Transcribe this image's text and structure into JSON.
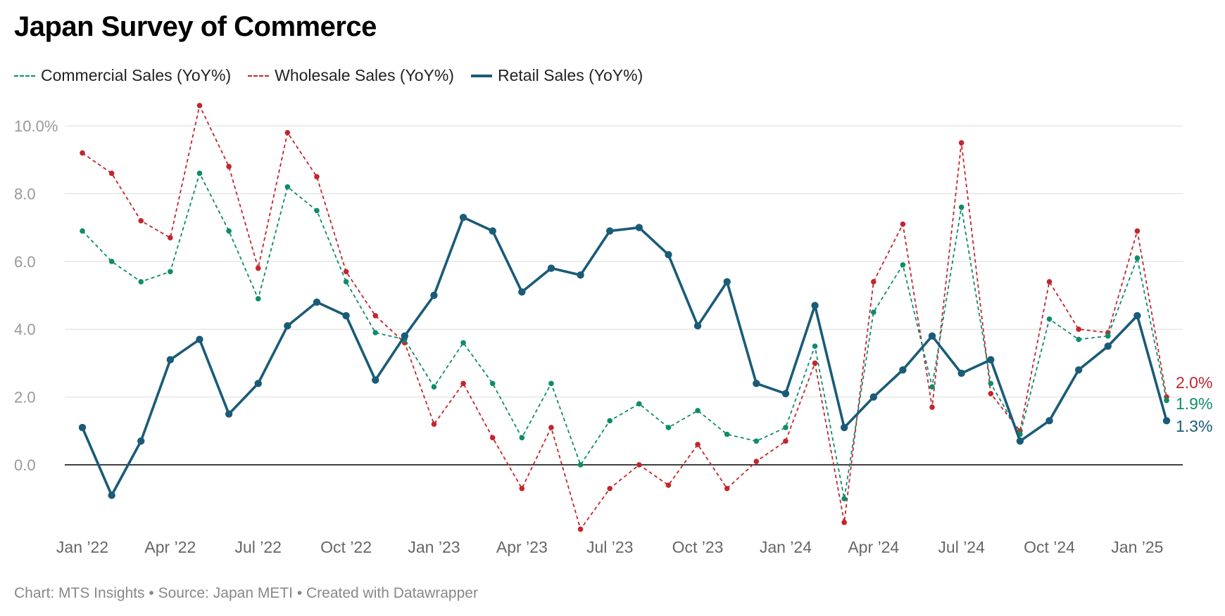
{
  "header": {
    "title": "Japan Survey of Commerce"
  },
  "legend": [
    {
      "label": "Commercial Sales (YoY%)",
      "style": "dashed",
      "color": "#0e8c6b"
    },
    {
      "label": "Wholesale Sales (YoY%)",
      "style": "dashed",
      "color": "#c1272d"
    },
    {
      "label": "Retail Sales (YoY%)",
      "style": "solid",
      "color": "#1a5b78"
    }
  ],
  "footer": {
    "text": "Chart: MTS Insights • Source: Japan METI • Created with Datawrapper"
  },
  "chart_data": {
    "type": "line",
    "title": "Japan Survey of Commerce",
    "xlabel": "",
    "ylabel": "",
    "ylim": [
      -2.2,
      10.0
    ],
    "grid": true,
    "legend_position": "top-left",
    "y_ticks": [
      {
        "value": 10,
        "label": "10.0%"
      },
      {
        "value": 8,
        "label": "8.0"
      },
      {
        "value": 6,
        "label": "6.0"
      },
      {
        "value": 4,
        "label": "4.0"
      },
      {
        "value": 2,
        "label": "2.0"
      },
      {
        "value": 0,
        "label": "0.0"
      }
    ],
    "x_ticks": [
      {
        "index": 0,
        "label": "Jan ’22"
      },
      {
        "index": 3,
        "label": "Apr ’22"
      },
      {
        "index": 6,
        "label": "Jul ’22"
      },
      {
        "index": 9,
        "label": "Oct ’22"
      },
      {
        "index": 12,
        "label": "Jan ’23"
      },
      {
        "index": 15,
        "label": "Apr ’23"
      },
      {
        "index": 18,
        "label": "Jul ’23"
      },
      {
        "index": 21,
        "label": "Oct ’23"
      },
      {
        "index": 24,
        "label": "Jan ’24"
      },
      {
        "index": 27,
        "label": "Apr ’24"
      },
      {
        "index": 30,
        "label": "Jul ’24"
      },
      {
        "index": 33,
        "label": "Oct ’24"
      },
      {
        "index": 36,
        "label": "Jan ’25"
      }
    ],
    "x": [
      "2022-01",
      "2022-02",
      "2022-03",
      "2022-04",
      "2022-05",
      "2022-06",
      "2022-07",
      "2022-08",
      "2022-09",
      "2022-10",
      "2022-11",
      "2022-12",
      "2023-01",
      "2023-02",
      "2023-03",
      "2023-04",
      "2023-05",
      "2023-06",
      "2023-07",
      "2023-08",
      "2023-09",
      "2023-10",
      "2023-11",
      "2023-12",
      "2024-01",
      "2024-02",
      "2024-03",
      "2024-04",
      "2024-05",
      "2024-06",
      "2024-07",
      "2024-08",
      "2024-09",
      "2024-10",
      "2024-11",
      "2024-12",
      "2025-01",
      "2025-02"
    ],
    "series": [
      {
        "name": "Wholesale Sales (YoY%)",
        "color": "#c1272d",
        "style": "dashed",
        "end_label": "2.0%",
        "values": [
          9.2,
          8.6,
          7.2,
          6.7,
          10.6,
          8.8,
          5.8,
          9.8,
          8.5,
          5.7,
          4.4,
          3.6,
          1.2,
          2.4,
          0.8,
          -0.7,
          1.1,
          -1.9,
          -0.7,
          0.0,
          -0.6,
          0.6,
          -0.7,
          0.1,
          0.7,
          3.0,
          -1.7,
          5.4,
          7.1,
          1.7,
          9.5,
          2.1,
          1.0,
          5.4,
          4.0,
          3.9,
          6.9,
          2.0
        ]
      },
      {
        "name": "Commercial Sales (YoY%)",
        "color": "#0e8c6b",
        "style": "dashed",
        "end_label": "1.9%",
        "values": [
          6.9,
          6.0,
          5.4,
          5.7,
          8.6,
          6.9,
          4.9,
          8.2,
          7.5,
          5.4,
          3.9,
          3.7,
          2.3,
          3.6,
          2.4,
          0.8,
          2.4,
          0.0,
          1.3,
          1.8,
          1.1,
          1.6,
          0.9,
          0.7,
          1.1,
          3.5,
          -1.0,
          4.5,
          5.9,
          2.3,
          7.6,
          2.4,
          0.9,
          4.3,
          3.7,
          3.8,
          6.1,
          1.9
        ]
      },
      {
        "name": "Retail Sales (YoY%)",
        "color": "#1a5b78",
        "style": "solid",
        "end_label": "1.3%",
        "values": [
          1.1,
          -0.9,
          0.7,
          3.1,
          3.7,
          1.5,
          2.4,
          4.1,
          4.8,
          4.4,
          2.5,
          3.8,
          5.0,
          7.3,
          6.9,
          5.1,
          5.8,
          5.6,
          6.9,
          7.0,
          6.2,
          4.1,
          5.4,
          2.4,
          2.1,
          4.7,
          1.1,
          2.0,
          2.8,
          3.8,
          2.7,
          3.1,
          0.7,
          1.3,
          2.8,
          3.5,
          4.4,
          1.3
        ]
      }
    ]
  }
}
